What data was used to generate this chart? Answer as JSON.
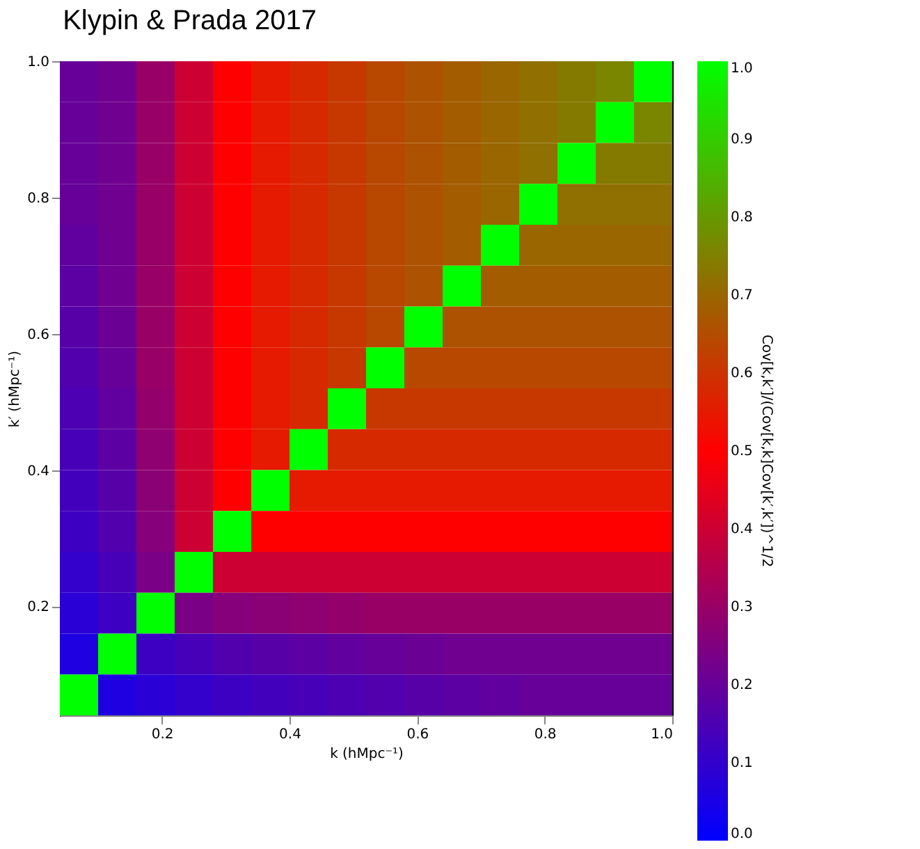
{
  "chart_data": {
    "type": "heatmap",
    "title": "Klypin & Prada 2017",
    "xlabel": "k (hMpc⁻¹)",
    "ylabel": "k′ (hMpc⁻¹)",
    "clabel": "Cov[k,k′]/(Cov[k,k]Cov[k′,k′])^1/2",
    "x": [
      0.07,
      0.13,
      0.19,
      0.25,
      0.31,
      0.37,
      0.43,
      0.49,
      0.55,
      0.61,
      0.67,
      0.73,
      0.79,
      0.85,
      0.91,
      0.97
    ],
    "y": [
      0.97,
      0.91,
      0.85,
      0.79,
      0.73,
      0.67,
      0.61,
      0.55,
      0.49,
      0.43,
      0.37,
      0.31,
      0.25,
      0.19,
      0.13,
      0.07
    ],
    "xlim": [
      0.04,
      1.0
    ],
    "ylim": [
      0.04,
      1.0
    ],
    "xticks": [
      0.2,
      0.4,
      0.6,
      0.8,
      {
        "value": 1.0,
        "label": "1.0"
      }
    ],
    "yticks": [
      0.2,
      0.4,
      0.6,
      0.8,
      {
        "value": 1.0,
        "label": "1.0"
      }
    ],
    "clim": [
      0,
      1
    ],
    "cticks": [
      {
        "value": 0,
        "label": "0.0"
      },
      0.1,
      0.2,
      0.3,
      0.4,
      0.5,
      0.6,
      0.7,
      0.8,
      0.9,
      {
        "value": 1,
        "label": "1.0"
      }
    ],
    "colors": [
      "#0000ff",
      "#ff0000",
      "#00ff00"
    ],
    "grid": false,
    "cells": [
      [
        0.2,
        0.22,
        0.3,
        0.4,
        0.5,
        0.55,
        0.58,
        0.61,
        0.64,
        0.66,
        0.68,
        0.7,
        0.72,
        0.74,
        0.76,
        1
      ],
      [
        0.2,
        0.22,
        0.3,
        0.4,
        0.5,
        0.55,
        0.58,
        0.61,
        0.64,
        0.66,
        0.68,
        0.7,
        0.72,
        0.74,
        1,
        0.76
      ],
      [
        0.2,
        0.22,
        0.3,
        0.4,
        0.5,
        0.55,
        0.58,
        0.61,
        0.64,
        0.66,
        0.68,
        0.7,
        0.72,
        1,
        0.74,
        0.74
      ],
      [
        0.2,
        0.22,
        0.3,
        0.4,
        0.5,
        0.55,
        0.58,
        0.61,
        0.64,
        0.66,
        0.68,
        0.7,
        1,
        0.72,
        0.72,
        0.72
      ],
      [
        0.19,
        0.22,
        0.3,
        0.4,
        0.5,
        0.55,
        0.58,
        0.61,
        0.64,
        0.66,
        0.68,
        1,
        0.7,
        0.7,
        0.7,
        0.7
      ],
      [
        0.18,
        0.22,
        0.3,
        0.4,
        0.5,
        0.55,
        0.58,
        0.61,
        0.64,
        0.66,
        1,
        0.68,
        0.68,
        0.68,
        0.68,
        0.68
      ],
      [
        0.17,
        0.21,
        0.3,
        0.4,
        0.5,
        0.55,
        0.58,
        0.61,
        0.64,
        1,
        0.66,
        0.66,
        0.66,
        0.66,
        0.66,
        0.66
      ],
      [
        0.16,
        0.2,
        0.3,
        0.4,
        0.5,
        0.55,
        0.58,
        0.61,
        1,
        0.64,
        0.64,
        0.64,
        0.64,
        0.64,
        0.64,
        0.64
      ],
      [
        0.15,
        0.19,
        0.29,
        0.4,
        0.5,
        0.55,
        0.58,
        1,
        0.61,
        0.61,
        0.61,
        0.61,
        0.61,
        0.61,
        0.61,
        0.61
      ],
      [
        0.14,
        0.18,
        0.28,
        0.4,
        0.5,
        0.55,
        1,
        0.58,
        0.58,
        0.58,
        0.58,
        0.58,
        0.58,
        0.58,
        0.58,
        0.58
      ],
      [
        0.13,
        0.17,
        0.27,
        0.4,
        0.5,
        1,
        0.55,
        0.55,
        0.55,
        0.55,
        0.55,
        0.55,
        0.55,
        0.55,
        0.55,
        0.55
      ],
      [
        0.12,
        0.16,
        0.26,
        0.4,
        1,
        0.5,
        0.5,
        0.5,
        0.5,
        0.5,
        0.5,
        0.5,
        0.5,
        0.5,
        0.5,
        0.5
      ],
      [
        0.1,
        0.14,
        0.24,
        1,
        0.4,
        0.4,
        0.4,
        0.4,
        0.4,
        0.4,
        0.4,
        0.4,
        0.4,
        0.4,
        0.4,
        0.4
      ],
      [
        0.08,
        0.12,
        1,
        0.24,
        0.26,
        0.27,
        0.28,
        0.29,
        0.3,
        0.3,
        0.3,
        0.3,
        0.3,
        0.3,
        0.3,
        0.3
      ],
      [
        0.06,
        1,
        0.12,
        0.14,
        0.16,
        0.17,
        0.18,
        0.19,
        0.2,
        0.21,
        0.22,
        0.22,
        0.22,
        0.22,
        0.22,
        0.22
      ],
      [
        1,
        0.06,
        0.08,
        0.1,
        0.12,
        0.13,
        0.14,
        0.15,
        0.16,
        0.17,
        0.18,
        0.19,
        0.2,
        0.2,
        0.2,
        0.2
      ]
    ]
  }
}
